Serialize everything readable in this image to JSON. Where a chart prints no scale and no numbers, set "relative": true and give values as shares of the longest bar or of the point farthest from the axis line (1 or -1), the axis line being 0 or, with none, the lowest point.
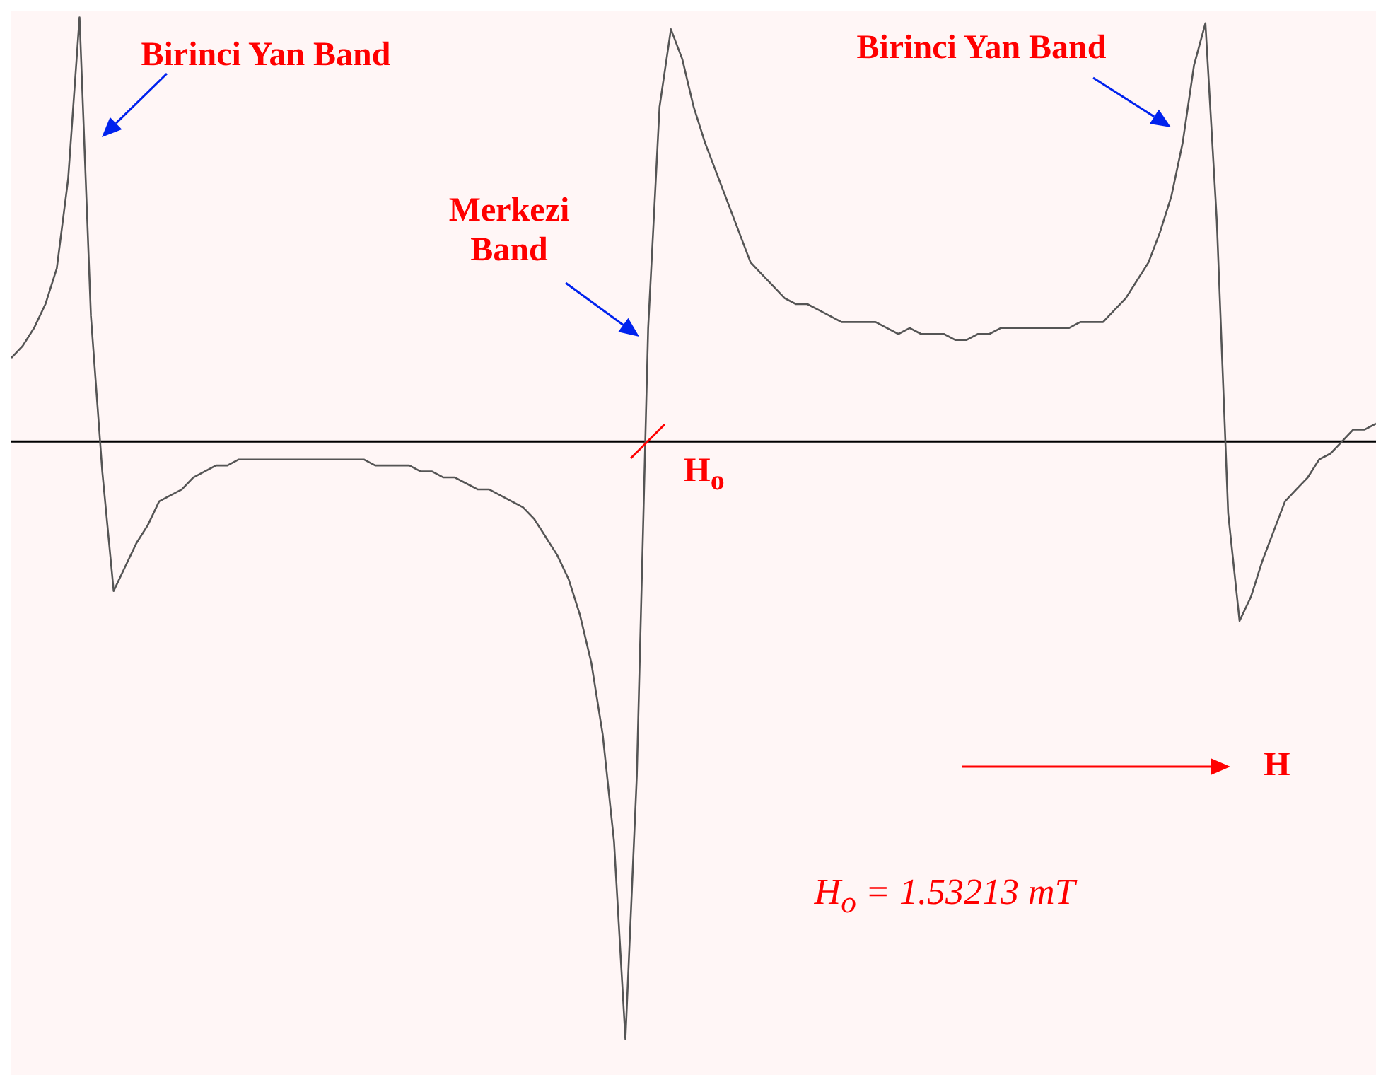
{
  "chart_data": {
    "type": "line",
    "relative": true,
    "color": "#555555",
    "categories": [
      null,
      null,
      null,
      null,
      null,
      null,
      null,
      null,
      null,
      null,
      null,
      null,
      null,
      null,
      null,
      null,
      null,
      null,
      null,
      null,
      null,
      null,
      null,
      null,
      null,
      null,
      null,
      null,
      null,
      null,
      null,
      null,
      null,
      null,
      null,
      null,
      null,
      null,
      null,
      null,
      null,
      null,
      null,
      null,
      null,
      null,
      null,
      null,
      null,
      null,
      null,
      null,
      null,
      null,
      null,
      null,
      null,
      null,
      null,
      null,
      null,
      null,
      null,
      null,
      null,
      null,
      null,
      null,
      null,
      null,
      null,
      null,
      null,
      null,
      null,
      null,
      null,
      null,
      null,
      null,
      null,
      null,
      null,
      null,
      null,
      null,
      null,
      null,
      null,
      null,
      null,
      null,
      null,
      null,
      null,
      null,
      null,
      null,
      null,
      null,
      null,
      null,
      null,
      null,
      null,
      null,
      null,
      null,
      null,
      null,
      null,
      null,
      null,
      null,
      null,
      null,
      null,
      null,
      null,
      null,
      null
    ],
    "values": [
      0.14,
      0.16,
      0.19,
      0.23,
      0.29,
      0.44,
      0.71,
      0.21,
      -0.05,
      -0.25,
      -0.21,
      -0.17,
      -0.14,
      -0.1,
      -0.09,
      -0.08,
      -0.06,
      -0.05,
      -0.04,
      -0.04,
      -0.03,
      -0.03,
      -0.03,
      -0.03,
      -0.03,
      -0.03,
      -0.03,
      -0.03,
      -0.03,
      -0.03,
      -0.03,
      -0.03,
      -0.04,
      -0.04,
      -0.04,
      -0.04,
      -0.05,
      -0.05,
      -0.06,
      -0.06,
      -0.07,
      -0.08,
      -0.08,
      -0.09,
      -0.1,
      -0.11,
      -0.13,
      -0.16,
      -0.19,
      -0.23,
      -0.29,
      -0.37,
      -0.49,
      -0.67,
      -1,
      -0.56,
      0.19,
      0.56,
      0.69,
      0.64,
      0.56,
      0.5,
      0.45,
      0.4,
      0.35,
      0.3,
      0.28,
      0.26,
      0.24,
      0.23,
      0.23,
      0.22,
      0.21,
      0.2,
      0.2,
      0.2,
      0.2,
      0.19,
      0.18,
      0.19,
      0.18,
      0.18,
      0.18,
      0.17,
      0.17,
      0.18,
      0.18,
      0.19,
      0.19,
      0.19,
      0.19,
      0.19,
      0.19,
      0.19,
      0.2,
      0.2,
      0.2,
      0.22,
      0.24,
      0.27,
      0.3,
      0.35,
      0.41,
      0.5,
      0.63,
      0.7,
      0.37,
      -0.12,
      -0.3,
      -0.26,
      -0.2,
      -0.15,
      -0.1,
      -0.08,
      -0.06,
      -0.03,
      -0.02,
      0,
      0.02,
      0.02,
      0.03
    ],
    "marker": "none",
    "annotations": [
      "Birinci Yan Band",
      "Merkezi Band",
      "Birinci Yan Band",
      "H$_{o}$",
      "H",
      "H$_{o}$ = 1.53213 mT"
    ]
  }
}
